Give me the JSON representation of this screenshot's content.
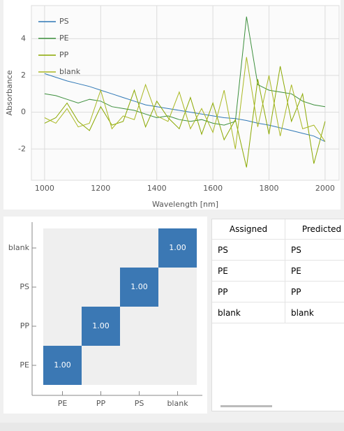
{
  "chart_data": [
    {
      "type": "line",
      "xlabel": "Wavelength [nm]",
      "ylabel": "Absorbance",
      "x": [
        1000,
        1040,
        1080,
        1120,
        1160,
        1200,
        1240,
        1280,
        1320,
        1360,
        1400,
        1440,
        1480,
        1520,
        1560,
        1600,
        1640,
        1680,
        1720,
        1760,
        1800,
        1840,
        1880,
        1920,
        1960,
        2000
      ],
      "series": [
        {
          "name": "PS",
          "color": "#2f78b6",
          "values": [
            2.1,
            1.9,
            1.7,
            1.55,
            1.4,
            1.2,
            1.0,
            0.8,
            0.6,
            0.4,
            0.3,
            0.2,
            0.1,
            0.0,
            -0.1,
            -0.2,
            -0.3,
            -0.35,
            -0.45,
            -0.6,
            -0.7,
            -0.85,
            -1.0,
            -1.15,
            -1.3,
            -1.6
          ]
        },
        {
          "name": "PE",
          "color": "#3c8f3c",
          "values": [
            1.0,
            0.9,
            0.7,
            0.5,
            0.7,
            0.6,
            0.3,
            0.2,
            0.1,
            -0.1,
            -0.3,
            -0.2,
            -0.4,
            -0.5,
            -0.4,
            -0.6,
            -0.7,
            -0.5,
            5.2,
            1.5,
            1.2,
            1.1,
            1.0,
            0.6,
            0.4,
            0.3
          ]
        },
        {
          "name": "PP",
          "color": "#8aa800",
          "values": [
            -0.6,
            -0.3,
            0.5,
            -0.5,
            -1.0,
            0.3,
            -0.7,
            -0.5,
            1.2,
            -0.8,
            0.6,
            -0.3,
            -0.9,
            0.8,
            -1.2,
            0.5,
            -1.5,
            -0.4,
            -3.0,
            1.8,
            -1.2,
            2.5,
            -0.5,
            1.0,
            -2.8,
            -0.5
          ]
        },
        {
          "name": "blank",
          "color": "#a9b822",
          "values": [
            -0.3,
            -0.6,
            0.2,
            -0.8,
            -0.6,
            1.2,
            -0.9,
            -0.2,
            -0.4,
            1.5,
            -0.2,
            -0.5,
            1.1,
            -0.9,
            0.2,
            -1.1,
            1.2,
            -2.0,
            3.0,
            -0.8,
            2.0,
            -1.3,
            1.5,
            -0.9,
            -0.7,
            -1.6
          ]
        }
      ],
      "xlim": [
        953,
        2050
      ],
      "xticks": [
        1000,
        1200,
        1400,
        1600,
        1800,
        2000
      ],
      "ylim": [
        -3.7,
        5.8
      ],
      "yticks": [
        -2,
        0,
        2,
        4
      ],
      "grid": true,
      "legend": "top-left"
    },
    {
      "type": "heatmap",
      "x_categories": [
        "PE",
        "PP",
        "PS",
        "blank"
      ],
      "y_categories": [
        "PE",
        "PP",
        "PS",
        "blank"
      ],
      "values": [
        [
          1,
          0,
          0,
          0
        ],
        [
          0,
          1,
          0,
          0
        ],
        [
          0,
          0,
          1,
          0
        ],
        [
          0,
          0,
          0,
          1
        ]
      ],
      "value_labels": [
        [
          "1.00",
          null,
          null,
          null
        ],
        [
          null,
          "1.00",
          null,
          null
        ],
        [
          null,
          null,
          "1.00",
          null
        ],
        [
          null,
          null,
          null,
          "1.00"
        ]
      ],
      "colors": [
        "#efefef",
        "#3b78b4"
      ]
    }
  ],
  "table": {
    "columns": [
      "Assigned",
      "Predicted"
    ],
    "rows": [
      [
        "PS",
        "PS"
      ],
      [
        "PE",
        "PE"
      ],
      [
        "PP",
        "PP"
      ],
      [
        "blank",
        "blank"
      ]
    ]
  }
}
